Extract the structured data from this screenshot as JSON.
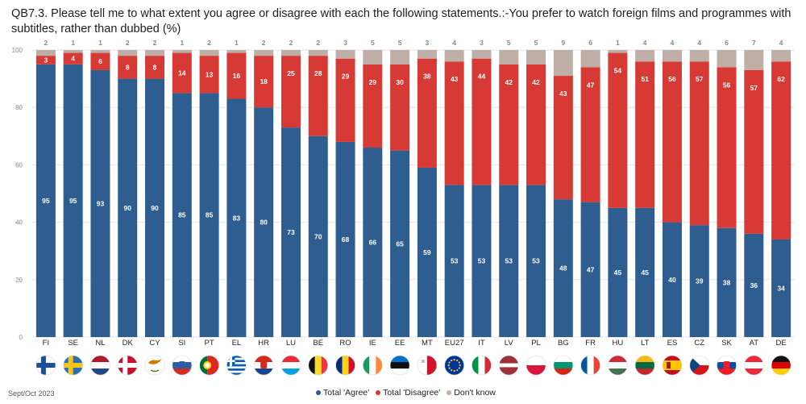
{
  "title": "QB7.3. Please tell me to what extent you agree or disagree with each the following statements.:-You prefer to watch foreign films and programmes with subtitles, rather than dubbed (%)",
  "footnote": "Sept/Oct 2023",
  "colors": {
    "agree": "#2e5d8f",
    "disagree": "#d73a35",
    "dontknow": "#bfaea6"
  },
  "chart_data": {
    "type": "bar",
    "stacked": true,
    "categories": [
      "FI",
      "SE",
      "NL",
      "DK",
      "CY",
      "SI",
      "PT",
      "EL",
      "HR",
      "LU",
      "BE",
      "RO",
      "IE",
      "EE",
      "MT",
      "EU27",
      "IT",
      "LV",
      "PL",
      "BG",
      "FR",
      "HU",
      "LT",
      "ES",
      "CZ",
      "SK",
      "AT",
      "DE"
    ],
    "series": [
      {
        "name": "Total 'Agree'",
        "values": [
          95,
          95,
          93,
          90,
          90,
          85,
          85,
          83,
          80,
          73,
          70,
          68,
          66,
          65,
          59,
          53,
          53,
          53,
          53,
          48,
          47,
          45,
          45,
          40,
          39,
          38,
          36,
          34
        ]
      },
      {
        "name": "Total 'Disagree'",
        "values": [
          3,
          4,
          6,
          8,
          8,
          14,
          13,
          16,
          18,
          25,
          28,
          29,
          29,
          30,
          38,
          43,
          44,
          42,
          42,
          43,
          47,
          54,
          51,
          56,
          57,
          56,
          57,
          62
        ]
      },
      {
        "name": "Don't know",
        "values": [
          2,
          1,
          1,
          2,
          2,
          1,
          2,
          1,
          2,
          2,
          2,
          3,
          5,
          5,
          3,
          4,
          3,
          5,
          5,
          9,
          6,
          1,
          4,
          4,
          4,
          6,
          7,
          4
        ]
      }
    ],
    "ylim": [
      0,
      100
    ],
    "yticks": [
      0,
      20,
      40,
      60,
      80,
      100
    ],
    "legend_position": "bottom-center",
    "grid": true
  },
  "flags": {
    "FI": {
      "type": "nordic",
      "bg": "#ffffff",
      "c1": "#1a4f9c"
    },
    "SE": {
      "type": "nordic",
      "bg": "#2f6db5",
      "c1": "#f5c518"
    },
    "DK": {
      "type": "nordic",
      "bg": "#c8102e",
      "c1": "#ffffff"
    },
    "NL": {
      "type": "h3",
      "c": [
        "#ae1c28",
        "#ffffff",
        "#21468b"
      ]
    },
    "LU": {
      "type": "h3",
      "c": [
        "#ed2939",
        "#ffffff",
        "#00a1de"
      ]
    },
    "HR": {
      "type": "h3",
      "c": [
        "#d52b1e",
        "#ffffff",
        "#17458f"
      ],
      "emblem": "#d52b1e"
    },
    "SI": {
      "type": "h3",
      "c": [
        "#ffffff",
        "#2d5fa8",
        "#d52b1e"
      ],
      "emblem": "#2d5fa8"
    },
    "BG": {
      "type": "h3",
      "c": [
        "#ffffff",
        "#00966e",
        "#d62612"
      ]
    },
    "HU": {
      "type": "h3",
      "c": [
        "#ce2939",
        "#ffffff",
        "#477050"
      ]
    },
    "LT": {
      "type": "h3",
      "c": [
        "#fdb913",
        "#006a44",
        "#c1272d"
      ]
    },
    "EE": {
      "type": "h3",
      "c": [
        "#0072ce",
        "#111111",
        "#ffffff"
      ]
    },
    "SK": {
      "type": "h3",
      "c": [
        "#ffffff",
        "#0b4ea2",
        "#ee1c25"
      ],
      "emblem": "#ee1c25"
    },
    "DE": {
      "type": "h3",
      "c": [
        "#111111",
        "#dd0000",
        "#ffce00"
      ]
    },
    "AT": {
      "type": "h3",
      "c": [
        "#ed2939",
        "#ffffff",
        "#ed2939"
      ]
    },
    "LV": {
      "type": "h3l",
      "c": [
        "#9e3039",
        "#ffffff",
        "#9e3039"
      ]
    },
    "PL": {
      "type": "h2",
      "c": [
        "#ffffff",
        "#dc143c"
      ]
    },
    "BE": {
      "type": "v3",
      "c": [
        "#111111",
        "#fdda24",
        "#ef3340"
      ]
    },
    "RO": {
      "type": "v3",
      "c": [
        "#002b7f",
        "#fcd116",
        "#ce1126"
      ]
    },
    "IE": {
      "type": "v3",
      "c": [
        "#169b62",
        "#ffffff",
        "#ff883e"
      ]
    },
    "IT": {
      "type": "v3",
      "c": [
        "#009246",
        "#ffffff",
        "#ce2b37"
      ]
    },
    "FR": {
      "type": "v3",
      "c": [
        "#0055a4",
        "#ffffff",
        "#ef4135"
      ]
    },
    "MT": {
      "type": "v2",
      "c": [
        "#ffffff",
        "#cf142b"
      ]
    },
    "ES": {
      "type": "es",
      "c": [
        "#c60b1e",
        "#ffc400"
      ]
    },
    "PT": {
      "type": "pt",
      "c": [
        "#046a38",
        "#da291c",
        "#ffd100"
      ]
    },
    "CY": {
      "type": "cy",
      "c": [
        "#ffffff",
        "#d57800",
        "#4e7c3c"
      ]
    },
    "EL": {
      "type": "gr",
      "c": [
        "#0d5eaf",
        "#ffffff"
      ]
    },
    "CZ": {
      "type": "cz",
      "c": [
        "#ffffff",
        "#d7141a",
        "#11457e"
      ]
    },
    "EU27": {
      "type": "eu",
      "c": [
        "#003399",
        "#ffcc00"
      ]
    }
  }
}
